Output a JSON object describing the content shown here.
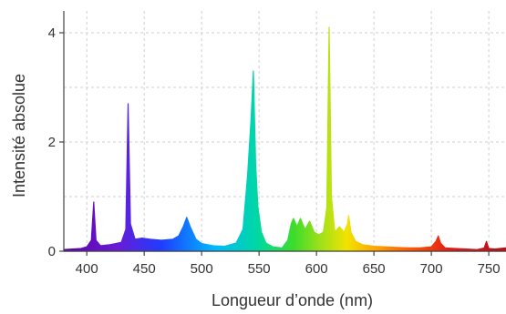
{
  "chart_data": {
    "type": "area",
    "title": "",
    "xlabel": "Longueur d’onde (nm)",
    "ylabel": "Intensité absolue",
    "xlim": [
      380,
      765
    ],
    "ylim": [
      0,
      4.4
    ],
    "x_ticks": [
      400,
      450,
      500,
      550,
      600,
      650,
      700,
      750
    ],
    "y_ticks": [
      0,
      2,
      4
    ],
    "grid": true,
    "legend": "none",
    "colormap": "visible-spectrum",
    "series": [
      {
        "x": [
          380,
          395,
          400,
          404,
          406,
          408,
          412,
          420,
          430,
          434,
          436,
          438,
          442,
          448,
          455,
          465,
          475,
          480,
          484,
          487,
          490,
          495,
          500,
          510,
          520,
          530,
          536,
          540,
          543,
          545,
          547,
          549,
          552,
          556,
          562,
          570,
          575,
          578,
          580,
          583,
          586,
          590,
          594,
          598,
          602,
          606,
          609,
          611,
          613,
          616,
          620,
          624,
          627,
          628,
          630,
          634,
          640,
          650,
          660,
          670,
          680,
          690,
          700,
          704,
          706,
          708,
          712,
          720,
          730,
          740,
          746,
          748,
          750,
          755,
          760,
          765
        ],
        "y": [
          0.03,
          0.05,
          0.08,
          0.2,
          0.9,
          0.2,
          0.1,
          0.12,
          0.16,
          0.4,
          2.7,
          0.5,
          0.22,
          0.24,
          0.22,
          0.2,
          0.22,
          0.28,
          0.45,
          0.62,
          0.45,
          0.22,
          0.14,
          0.1,
          0.09,
          0.15,
          0.4,
          1.4,
          2.4,
          3.3,
          1.6,
          0.8,
          0.35,
          0.15,
          0.08,
          0.06,
          0.2,
          0.5,
          0.6,
          0.45,
          0.6,
          0.4,
          0.55,
          0.35,
          0.3,
          0.35,
          0.8,
          4.1,
          1.0,
          0.35,
          0.45,
          0.35,
          0.5,
          0.65,
          0.35,
          0.18,
          0.12,
          0.09,
          0.08,
          0.07,
          0.06,
          0.06,
          0.08,
          0.18,
          0.28,
          0.15,
          0.06,
          0.05,
          0.04,
          0.03,
          0.06,
          0.18,
          0.05,
          0.04,
          0.05,
          0.06
        ]
      }
    ]
  }
}
